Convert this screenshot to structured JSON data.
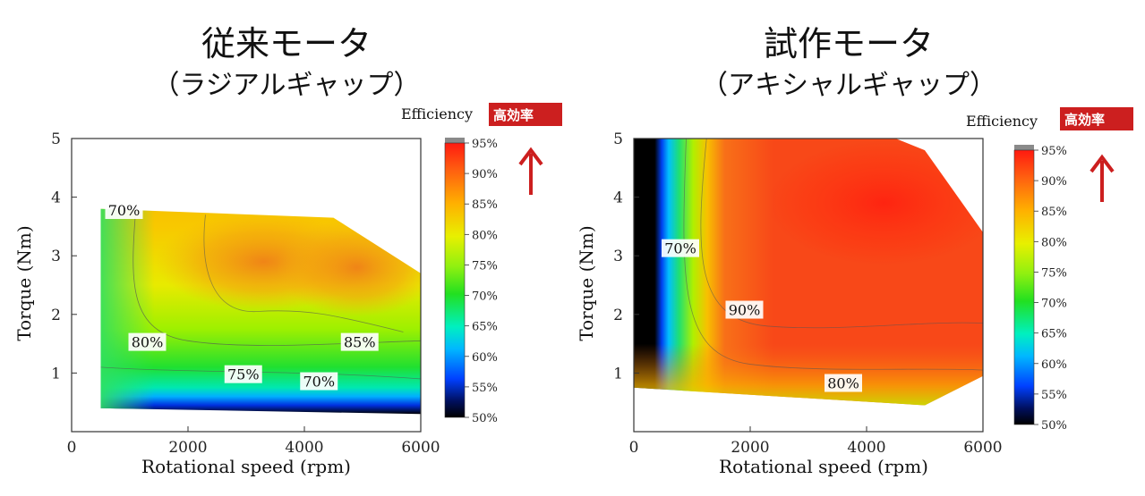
{
  "charts": {
    "left": {
      "title": "従来モータ",
      "subtitle": "（ラジアルギャップ）",
      "colorbar_label": "Efficiency",
      "badge": "高効率"
    },
    "right": {
      "title": "試作モータ",
      "subtitle": "（アキシャルギャップ）",
      "colorbar_label": "Efficiency",
      "badge": "高効率"
    }
  },
  "colors": {
    "badge": "#cc1f1f",
    "arrow": "#cc1f1f"
  },
  "chart_data": [
    {
      "type": "heatmap",
      "title": "従来モータ",
      "subtitle": "（ラジアルギャップ）",
      "xlabel": "Rotational speed (rpm)",
      "ylabel": "Torque (Nm)",
      "xlim": [
        0,
        6000
      ],
      "ylim": [
        0,
        5
      ],
      "xticks": [
        "0",
        "2000",
        "4000",
        "6000"
      ],
      "yticks": [
        "1",
        "2",
        "3",
        "4",
        "5"
      ],
      "colorbar": {
        "label": "Efficiency",
        "range": [
          50,
          95
        ],
        "ticks": [
          "95%",
          "90%",
          "85%",
          "80%",
          "75%",
          "70%",
          "65%",
          "60%",
          "55%",
          "50%"
        ]
      },
      "operating_boundary": [
        [
          500,
          0.4
        ],
        [
          500,
          3.8
        ],
        [
          4500,
          3.65
        ],
        [
          6000,
          2.7
        ],
        [
          6000,
          0.3
        ]
      ],
      "contour_labels": [
        {
          "text": "70%",
          "x": 900,
          "y": 3.75
        },
        {
          "text": "80%",
          "x": 1300,
          "y": 1.5
        },
        {
          "text": "85%",
          "x": 4950,
          "y": 1.5
        },
        {
          "text": "75%",
          "x": 2950,
          "y": 0.95
        },
        {
          "text": "70%",
          "x": 4250,
          "y": 0.83
        }
      ]
    },
    {
      "type": "heatmap",
      "title": "試作モータ",
      "subtitle": "（アキシャルギャップ）",
      "xlabel": "Rotational speed (rpm)",
      "ylabel": "Torque (Nm)",
      "xlim": [
        0,
        6000
      ],
      "ylim": [
        0,
        5
      ],
      "xticks": [
        "0",
        "2000",
        "4000",
        "6000"
      ],
      "yticks": [
        "1",
        "2",
        "3",
        "4",
        "5"
      ],
      "colorbar": {
        "label": "Efficiency",
        "range": [
          50,
          95
        ],
        "ticks": [
          "95%",
          "90%",
          "85%",
          "80%",
          "75%",
          "70%",
          "65%",
          "60%",
          "55%",
          "50%"
        ]
      },
      "operating_boundary": [
        [
          0,
          0.75
        ],
        [
          0,
          5
        ],
        [
          4500,
          5
        ],
        [
          5000,
          4.8
        ],
        [
          6000,
          3.4
        ],
        [
          6000,
          0.95
        ],
        [
          5000,
          0.45
        ]
      ],
      "contour_labels": [
        {
          "text": "70%",
          "x": 800,
          "y": 3.1
        },
        {
          "text": "90%",
          "x": 1900,
          "y": 2.05
        },
        {
          "text": "80%",
          "x": 3600,
          "y": 0.8
        }
      ]
    }
  ]
}
